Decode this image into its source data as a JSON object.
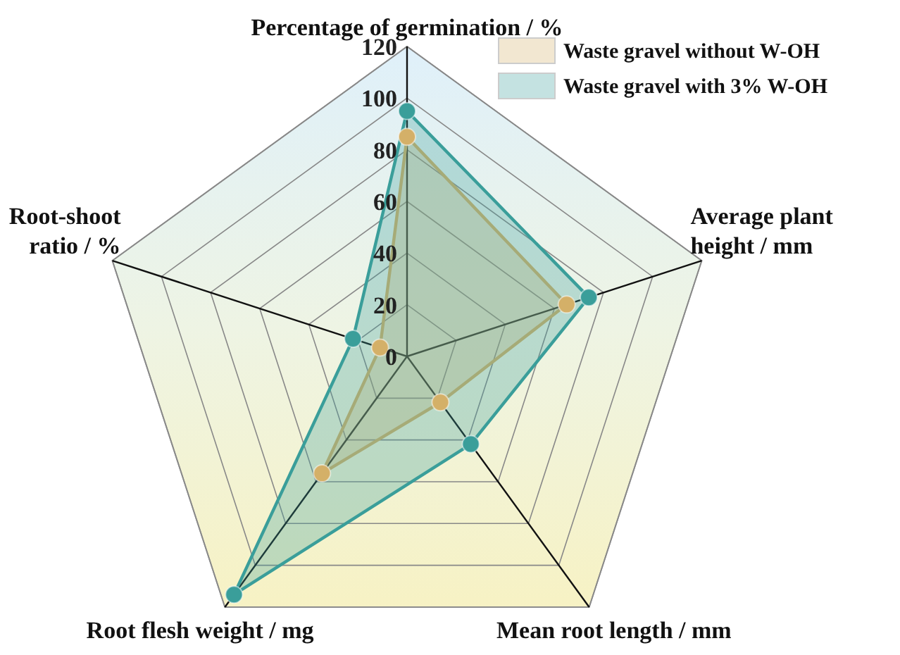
{
  "chart_data": {
    "type": "radar",
    "categories": [
      "Percentage of germination / %",
      "Average plant height / mm",
      "Mean root length / mm",
      "Root flesh weight / mg",
      "Root-shoot ratio / %"
    ],
    "series": [
      {
        "name": "Waste gravel without W-OH",
        "color": "#d4b068",
        "values": [
          85,
          65,
          22,
          56,
          11
        ]
      },
      {
        "name": "Waste gravel with 3% W-OH",
        "color": "#3a9e9a",
        "values": [
          95,
          74,
          42,
          114,
          22
        ]
      }
    ],
    "ylim": [
      0,
      120
    ],
    "yticks": [
      0,
      20,
      40,
      60,
      80,
      100,
      120
    ],
    "grid": true,
    "legend": "top right",
    "marker": "circle"
  }
}
